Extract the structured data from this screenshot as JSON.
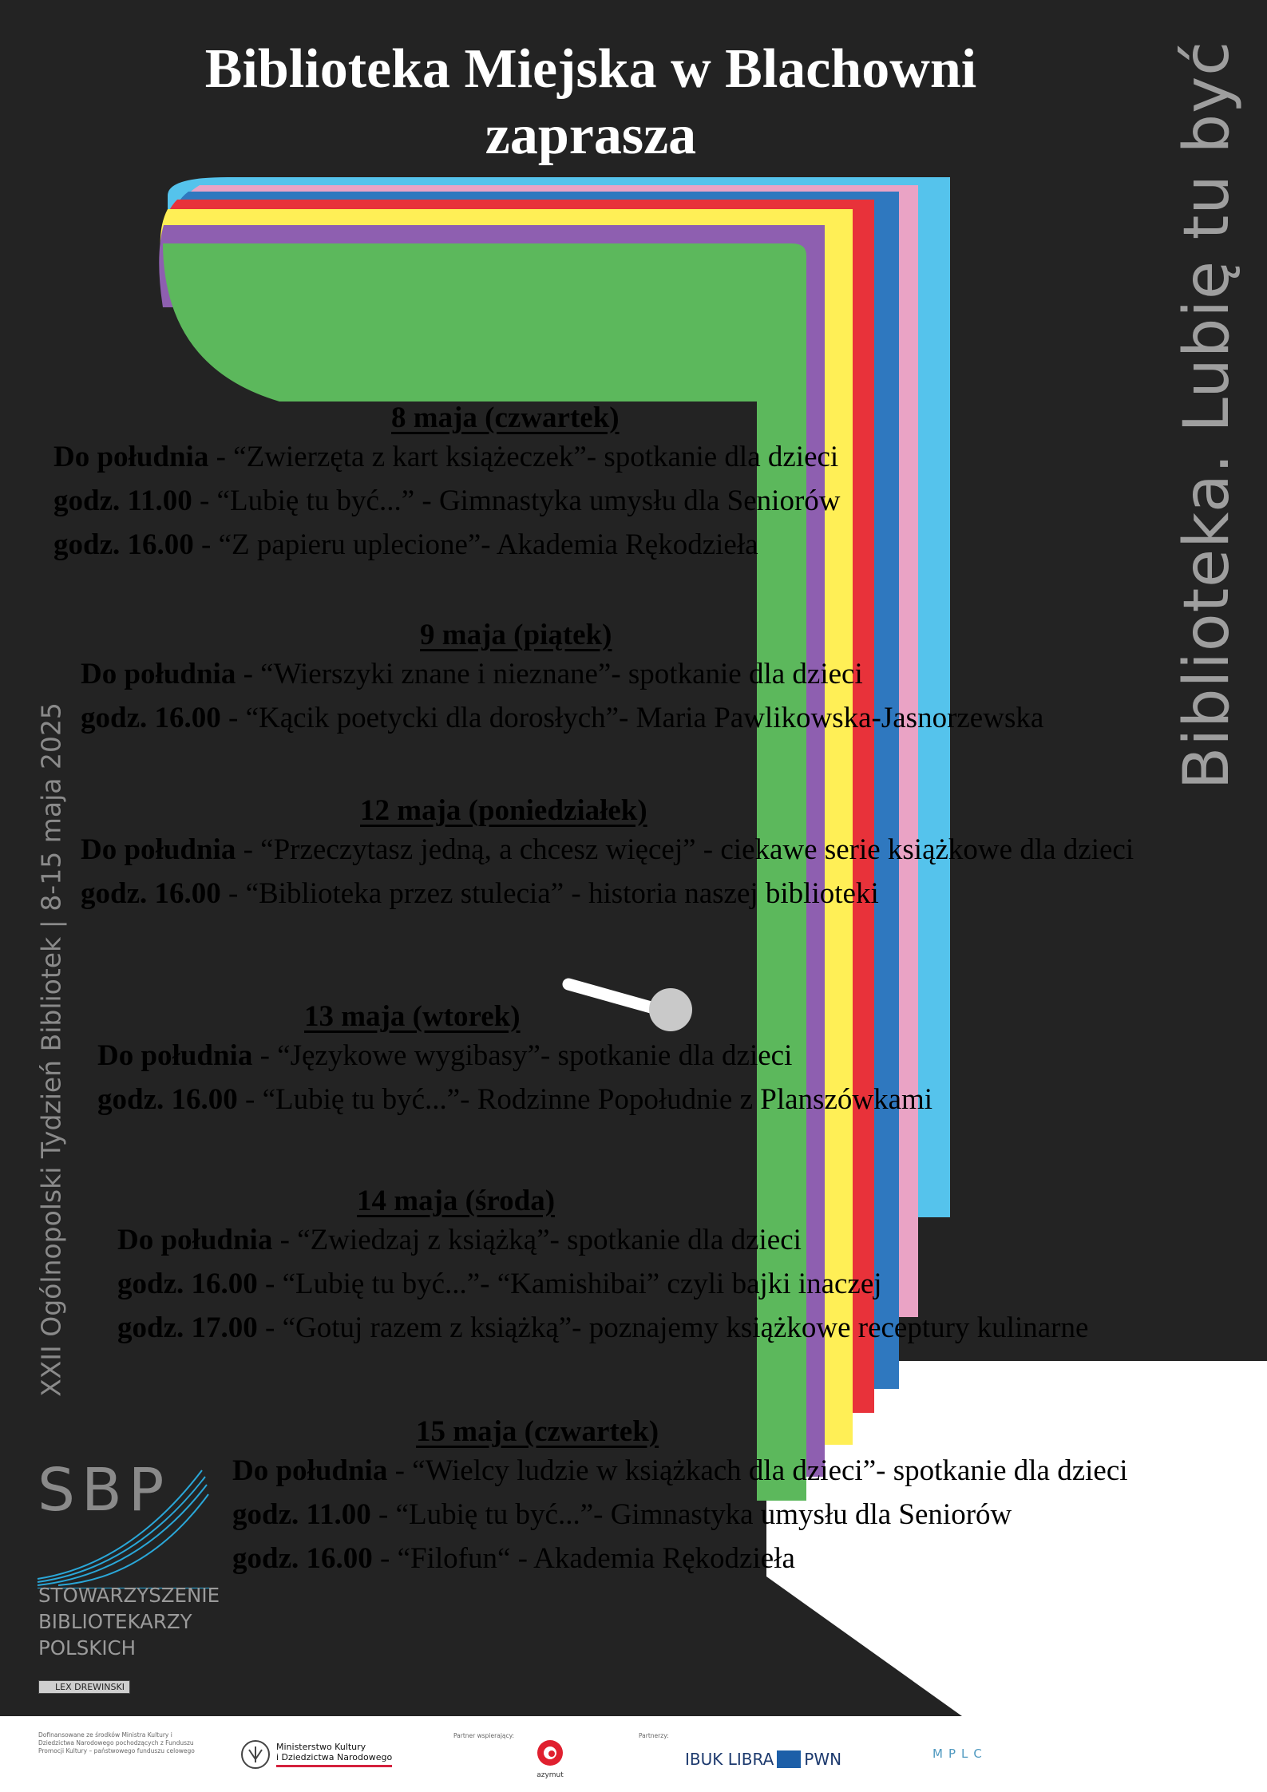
{
  "header": {
    "title_line1": "Biblioteka Miejska w Blachowni",
    "title_line2": "zaprasza"
  },
  "side_text_right": "Biblioteka. Lubię tu być",
  "side_text_left": "XXII Ogólnopolski Tydzień Bibliotek | 8-15 maja 2025",
  "colors": {
    "background": "#232323",
    "green": "#5cb85c",
    "purple": "#8e5fb0",
    "yellow": "#ffef56",
    "red": "#e8323a",
    "blue": "#2f78bf",
    "pink": "#eaa3c5",
    "cyan": "#55c3ec"
  },
  "days": [
    {
      "date": "8 maja (czwartek)",
      "events": [
        {
          "time": "Do południa",
          "desc": " - “Zwierzęta z kart książeczek”- spotkanie dla dzieci"
        },
        {
          "time": "godz. 11.00",
          "desc": " - “Lubię tu być...” - Gimnastyka umysłu dla Seniorów"
        },
        {
          "time": "godz. 16.00",
          "desc": " - “Z papieru uplecione”- Akademia Rękodzieła"
        }
      ]
    },
    {
      "date": "9 maja (piątek)",
      "events": [
        {
          "time": "Do południa",
          "desc": " - “Wierszyki znane i nieznane”- spotkanie dla dzieci"
        },
        {
          "time": "godz. 16.00",
          "desc": " - “Kącik poetycki dla dorosłych”- Maria Pawlikowska-Jasnorzewska"
        }
      ]
    },
    {
      "date": "12 maja (poniedziałek)",
      "events": [
        {
          "time": "Do południa",
          "desc": " - “Przeczytasz jedną, a chcesz więcej” - ciekawe serie książkowe dla dzieci"
        },
        {
          "time": "godz. 16.00",
          "desc": " - “Biblioteka przez stulecia” - historia naszej biblioteki"
        }
      ]
    },
    {
      "date": "13 maja (wtorek)",
      "events": [
        {
          "time": "Do południa",
          "desc": " - “Językowe wygibasy”- spotkanie dla dzieci"
        },
        {
          "time": "godz. 16.00",
          "desc": " - “Lubię tu być...”- Rodzinne Popołudnie z Planszówkami"
        }
      ]
    },
    {
      "date": "14 maja (środa)",
      "events": [
        {
          "time": "Do południa",
          "desc": " - “Zwiedzaj z książką”- spotkanie dla dzieci"
        },
        {
          "time": "godz. 16.00",
          "desc": " - “Lubię tu być...”- “Kamishibai” czyli bajki inaczej"
        },
        {
          "time": "godz. 17.00",
          "desc": " - “Gotuj razem z książką”- poznajemy książkowe receptury kulinarne"
        }
      ]
    },
    {
      "date": "15 maja (czwartek)",
      "events": [
        {
          "time": "Do południa",
          "desc": " - “Wielcy ludzie w książkach dla dzieci”- spotkanie dla dzieci"
        },
        {
          "time": "godz. 11.00",
          "desc": " - “Lubię tu być...”- Gimnastyka umysłu dla Seniorów"
        },
        {
          "time": "godz. 16.00",
          "desc": " - “Filofun“ - Akademia Rękodzieła"
        }
      ]
    }
  ],
  "sbp": {
    "letters": "SBP",
    "name_lines": [
      "STOWARZYSZENIE",
      "BIBLIOTEKARZY",
      "POLSKICH"
    ]
  },
  "lex_label": "LEX DREWINSKI",
  "footer": {
    "funding_text": "Dofinansowane ze środków Ministra Kultury i Dziedzictwa Narodowego pochodzących z Funduszu Promocji Kultury – państwowego funduszu celowego",
    "ministry_line1": "Ministerstwo Kultury",
    "ministry_line2": "i Dziedzictwa Narodowego",
    "partner_supporting_label": "Partner wspierający:",
    "azymut_name": "azymut",
    "partners_label": "Partnerzy:",
    "ibuk": "IBUK LIBRA",
    "pwn": "PWN",
    "mplc": "MPLC"
  }
}
